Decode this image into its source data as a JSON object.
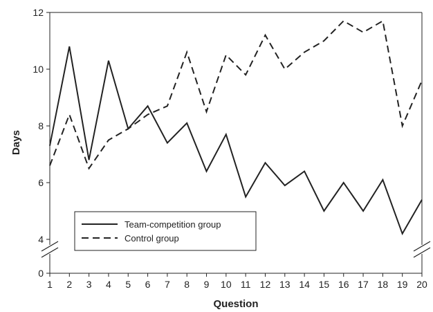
{
  "chart_data": {
    "type": "line",
    "title": "",
    "xlabel": "Question",
    "ylabel": "Days",
    "x": [
      1,
      2,
      3,
      4,
      5,
      6,
      7,
      8,
      9,
      10,
      11,
      12,
      13,
      14,
      15,
      16,
      17,
      18,
      19,
      20
    ],
    "xlim": [
      1,
      20
    ],
    "ylim": [
      0,
      12
    ],
    "axis_break": [
      0,
      4
    ],
    "y_ticks": [
      0,
      4,
      6,
      8,
      10,
      12
    ],
    "grid": false,
    "legend_position": "bottom-left",
    "series": [
      {
        "name": "Team-competition group",
        "style": "solid",
        "color": "#222222",
        "values": [
          7.3,
          10.8,
          6.8,
          10.3,
          7.9,
          8.7,
          7.4,
          8.1,
          6.4,
          7.7,
          5.5,
          6.7,
          5.9,
          6.4,
          5.0,
          6.0,
          5.0,
          6.1,
          4.2,
          5.4
        ]
      },
      {
        "name": "Control group",
        "style": "dashed",
        "color": "#222222",
        "values": [
          6.6,
          8.4,
          6.5,
          7.5,
          7.9,
          8.4,
          8.7,
          10.6,
          8.5,
          10.5,
          9.8,
          11.2,
          10.0,
          10.6,
          11.0,
          11.7,
          11.3,
          11.7,
          8.0,
          9.6
        ]
      }
    ]
  }
}
